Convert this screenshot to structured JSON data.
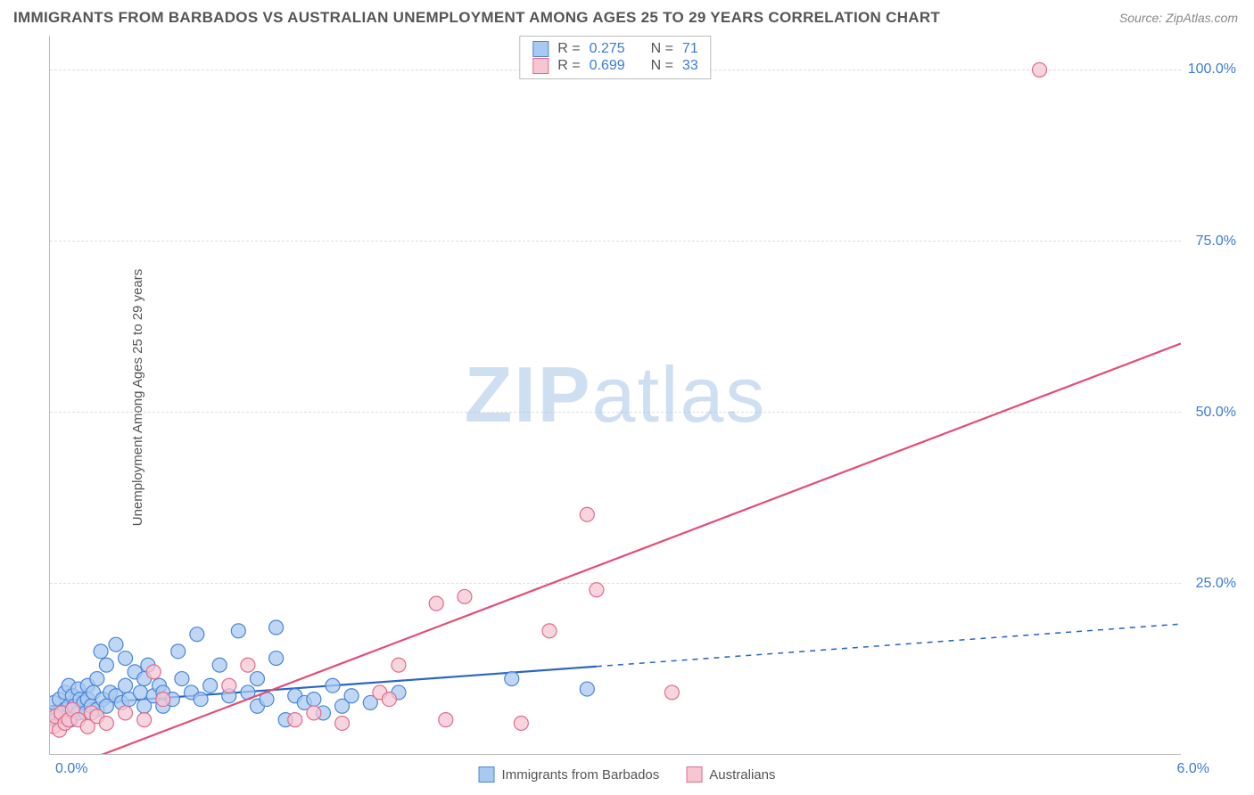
{
  "title": "IMMIGRANTS FROM BARBADOS VS AUSTRALIAN UNEMPLOYMENT AMONG AGES 25 TO 29 YEARS CORRELATION CHART",
  "source": "Source: ZipAtlas.com",
  "ylabel": "Unemployment Among Ages 25 to 29 years",
  "watermark_a": "ZIP",
  "watermark_b": "atlas",
  "chart": {
    "type": "scatter",
    "background_color": "#ffffff",
    "grid_color": "#dddddd",
    "axis_color": "#bbbbbb",
    "tick_label_color": "#3a7bd5",
    "text_color": "#555555",
    "xlim": [
      0.0,
      6.0
    ],
    "ylim": [
      0.0,
      105.0
    ],
    "xticks": [
      {
        "v": 0.0,
        "label": "0.0%"
      },
      {
        "v": 6.0,
        "label": "6.0%"
      }
    ],
    "yticks": [
      {
        "v": 25.0,
        "label": "25.0%"
      },
      {
        "v": 50.0,
        "label": "50.0%"
      },
      {
        "v": 75.0,
        "label": "75.0%"
      },
      {
        "v": 100.0,
        "label": "100.0%"
      }
    ],
    "top_legend": [
      {
        "swatch_fill": "#a9c9f0",
        "swatch_stroke": "#4a86d8",
        "r": "0.275",
        "n": "71"
      },
      {
        "swatch_fill": "#f6c6d3",
        "swatch_stroke": "#e06c8c",
        "r": "0.699",
        "n": "33"
      }
    ],
    "bottom_legend": [
      {
        "swatch_fill": "#a9c9f0",
        "swatch_stroke": "#4a86d8",
        "label": "Immigrants from Barbados"
      },
      {
        "swatch_fill": "#f6c6d3",
        "swatch_stroke": "#e06c8c",
        "label": "Australians"
      }
    ],
    "series": [
      {
        "name": "barbados",
        "marker_fill": "#a9c9f0",
        "marker_stroke": "#4a86d8",
        "marker_r": 8,
        "line_color": "#2a66c4",
        "line_width": 2.2,
        "line_solid_to_x": 2.9,
        "dashed": true,
        "trend_y_at_xmin": 7.0,
        "trend_y_at_xmax": 19.0,
        "points": [
          [
            0.0,
            6.0
          ],
          [
            0.02,
            7.5
          ],
          [
            0.03,
            5.0
          ],
          [
            0.05,
            8.0
          ],
          [
            0.06,
            5.5
          ],
          [
            0.08,
            9.0
          ],
          [
            0.08,
            6.5
          ],
          [
            0.1,
            7.0
          ],
          [
            0.1,
            10.0
          ],
          [
            0.11,
            5.0
          ],
          [
            0.12,
            8.5
          ],
          [
            0.13,
            7.0
          ],
          [
            0.15,
            6.0
          ],
          [
            0.15,
            9.5
          ],
          [
            0.16,
            8.0
          ],
          [
            0.18,
            7.5
          ],
          [
            0.19,
            6.0
          ],
          [
            0.2,
            10.0
          ],
          [
            0.2,
            8.0
          ],
          [
            0.22,
            7.0
          ],
          [
            0.23,
            9.0
          ],
          [
            0.25,
            6.5
          ],
          [
            0.25,
            11.0
          ],
          [
            0.27,
            15.0
          ],
          [
            0.28,
            8.0
          ],
          [
            0.3,
            7.0
          ],
          [
            0.3,
            13.0
          ],
          [
            0.32,
            9.0
          ],
          [
            0.35,
            8.5
          ],
          [
            0.35,
            16.0
          ],
          [
            0.38,
            7.5
          ],
          [
            0.4,
            10.0
          ],
          [
            0.4,
            14.0
          ],
          [
            0.42,
            8.0
          ],
          [
            0.45,
            12.0
          ],
          [
            0.48,
            9.0
          ],
          [
            0.5,
            7.0
          ],
          [
            0.5,
            11.0
          ],
          [
            0.52,
            13.0
          ],
          [
            0.55,
            8.5
          ],
          [
            0.58,
            10.0
          ],
          [
            0.6,
            7.0
          ],
          [
            0.6,
            9.0
          ],
          [
            0.65,
            8.0
          ],
          [
            0.68,
            15.0
          ],
          [
            0.7,
            11.0
          ],
          [
            0.75,
            9.0
          ],
          [
            0.78,
            17.5
          ],
          [
            0.8,
            8.0
          ],
          [
            0.85,
            10.0
          ],
          [
            0.9,
            13.0
          ],
          [
            0.95,
            8.5
          ],
          [
            1.0,
            18.0
          ],
          [
            1.05,
            9.0
          ],
          [
            1.1,
            7.0
          ],
          [
            1.1,
            11.0
          ],
          [
            1.15,
            8.0
          ],
          [
            1.2,
            14.0
          ],
          [
            1.2,
            18.5
          ],
          [
            1.25,
            5.0
          ],
          [
            1.3,
            8.5
          ],
          [
            1.35,
            7.5
          ],
          [
            1.4,
            8.0
          ],
          [
            1.45,
            6.0
          ],
          [
            1.5,
            10.0
          ],
          [
            1.55,
            7.0
          ],
          [
            1.6,
            8.5
          ],
          [
            1.7,
            7.5
          ],
          [
            1.85,
            9.0
          ],
          [
            2.45,
            11.0
          ],
          [
            2.85,
            9.5
          ]
        ]
      },
      {
        "name": "australians",
        "marker_fill": "#f6c6d3",
        "marker_stroke": "#e06c8c",
        "marker_r": 8,
        "line_color": "#e34d77",
        "line_width": 2.2,
        "line_solid_to_x": 6.0,
        "dashed": false,
        "trend_y_at_xmin": -3.0,
        "trend_y_at_xmax": 60.0,
        "points": [
          [
            0.02,
            4.0
          ],
          [
            0.03,
            5.5
          ],
          [
            0.05,
            3.5
          ],
          [
            0.06,
            6.0
          ],
          [
            0.08,
            4.5
          ],
          [
            0.1,
            5.0
          ],
          [
            0.12,
            6.5
          ],
          [
            0.15,
            5.0
          ],
          [
            0.2,
            4.0
          ],
          [
            0.22,
            6.0
          ],
          [
            0.25,
            5.5
          ],
          [
            0.3,
            4.5
          ],
          [
            0.4,
            6.0
          ],
          [
            0.5,
            5.0
          ],
          [
            0.55,
            12.0
          ],
          [
            0.6,
            8.0
          ],
          [
            0.95,
            10.0
          ],
          [
            1.05,
            13.0
          ],
          [
            1.3,
            5.0
          ],
          [
            1.4,
            6.0
          ],
          [
            1.55,
            4.5
          ],
          [
            1.75,
            9.0
          ],
          [
            1.8,
            8.0
          ],
          [
            1.85,
            13.0
          ],
          [
            2.05,
            22.0
          ],
          [
            2.1,
            5.0
          ],
          [
            2.2,
            23.0
          ],
          [
            2.5,
            4.5
          ],
          [
            2.65,
            18.0
          ],
          [
            2.85,
            35.0
          ],
          [
            2.9,
            24.0
          ],
          [
            3.3,
            9.0
          ],
          [
            5.25,
            100.0
          ]
        ]
      }
    ]
  }
}
